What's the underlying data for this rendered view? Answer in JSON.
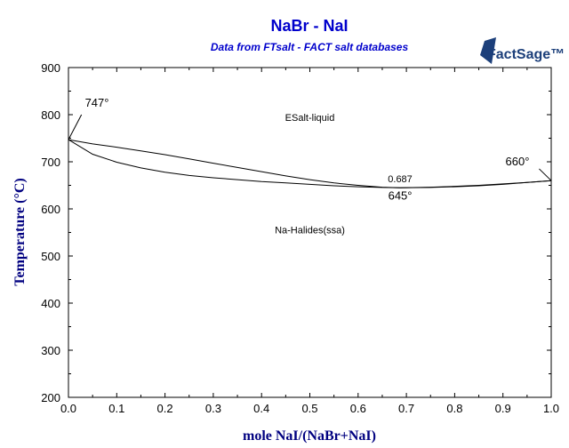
{
  "chart_data": {
    "type": "line",
    "title": "NaBr - NaI",
    "subtitle": "Data from FTsalt - FACT salt databases",
    "xlabel": "mole NaI/(NaBr+NaI)",
    "ylabel": "Temperature (°C)",
    "xlim": [
      0,
      1
    ],
    "ylim": [
      200,
      900
    ],
    "xticks": [
      "0.0",
      "0.1",
      "0.2",
      "0.3",
      "0.4",
      "0.5",
      "0.6",
      "0.7",
      "0.8",
      "0.9",
      "1.0"
    ],
    "yticks": [
      "200",
      "300",
      "400",
      "500",
      "600",
      "700",
      "800",
      "900"
    ],
    "grid": false,
    "legend": "none",
    "line_color": "#000000",
    "series": [
      {
        "x": [
          0.0,
          0.05,
          0.1,
          0.15,
          0.2,
          0.25,
          0.3,
          0.35,
          0.4,
          0.45,
          0.5,
          0.55,
          0.6,
          0.65,
          0.687,
          0.75,
          0.8,
          0.85,
          0.9,
          0.95,
          1.0
        ],
        "y": [
          747,
          738,
          731,
          723,
          715,
          706,
          697,
          688,
          679,
          670,
          662,
          655,
          650,
          646,
          645,
          646,
          648,
          650,
          653,
          656,
          660
        ]
      },
      {
        "x": [
          0.0,
          0.05,
          0.1,
          0.15,
          0.2,
          0.25,
          0.3,
          0.35,
          0.4,
          0.45,
          0.5,
          0.55,
          0.6,
          0.65,
          0.687,
          0.75,
          0.8,
          0.85,
          0.9,
          0.95,
          1.0
        ],
        "y": [
          747,
          716,
          699,
          687,
          678,
          671,
          666,
          662,
          658,
          655,
          652,
          649,
          647,
          645.5,
          645,
          645.5,
          647,
          649,
          652,
          656,
          660
        ]
      }
    ],
    "annotations": [
      {
        "text": "ESalt-liquid",
        "x": 0.5,
        "y": 787
      },
      {
        "text": "Na-Halides(ssa)",
        "x": 0.5,
        "y": 548
      },
      {
        "text": "0.687",
        "x": 0.687,
        "y": 657
      },
      {
        "text": "645°",
        "x": 0.687,
        "y": 620
      },
      {
        "text": "747°",
        "x": 0.06,
        "y": 817
      },
      {
        "text": "660°",
        "x": 0.94,
        "y": 692
      }
    ],
    "logo": "FactSage™"
  }
}
